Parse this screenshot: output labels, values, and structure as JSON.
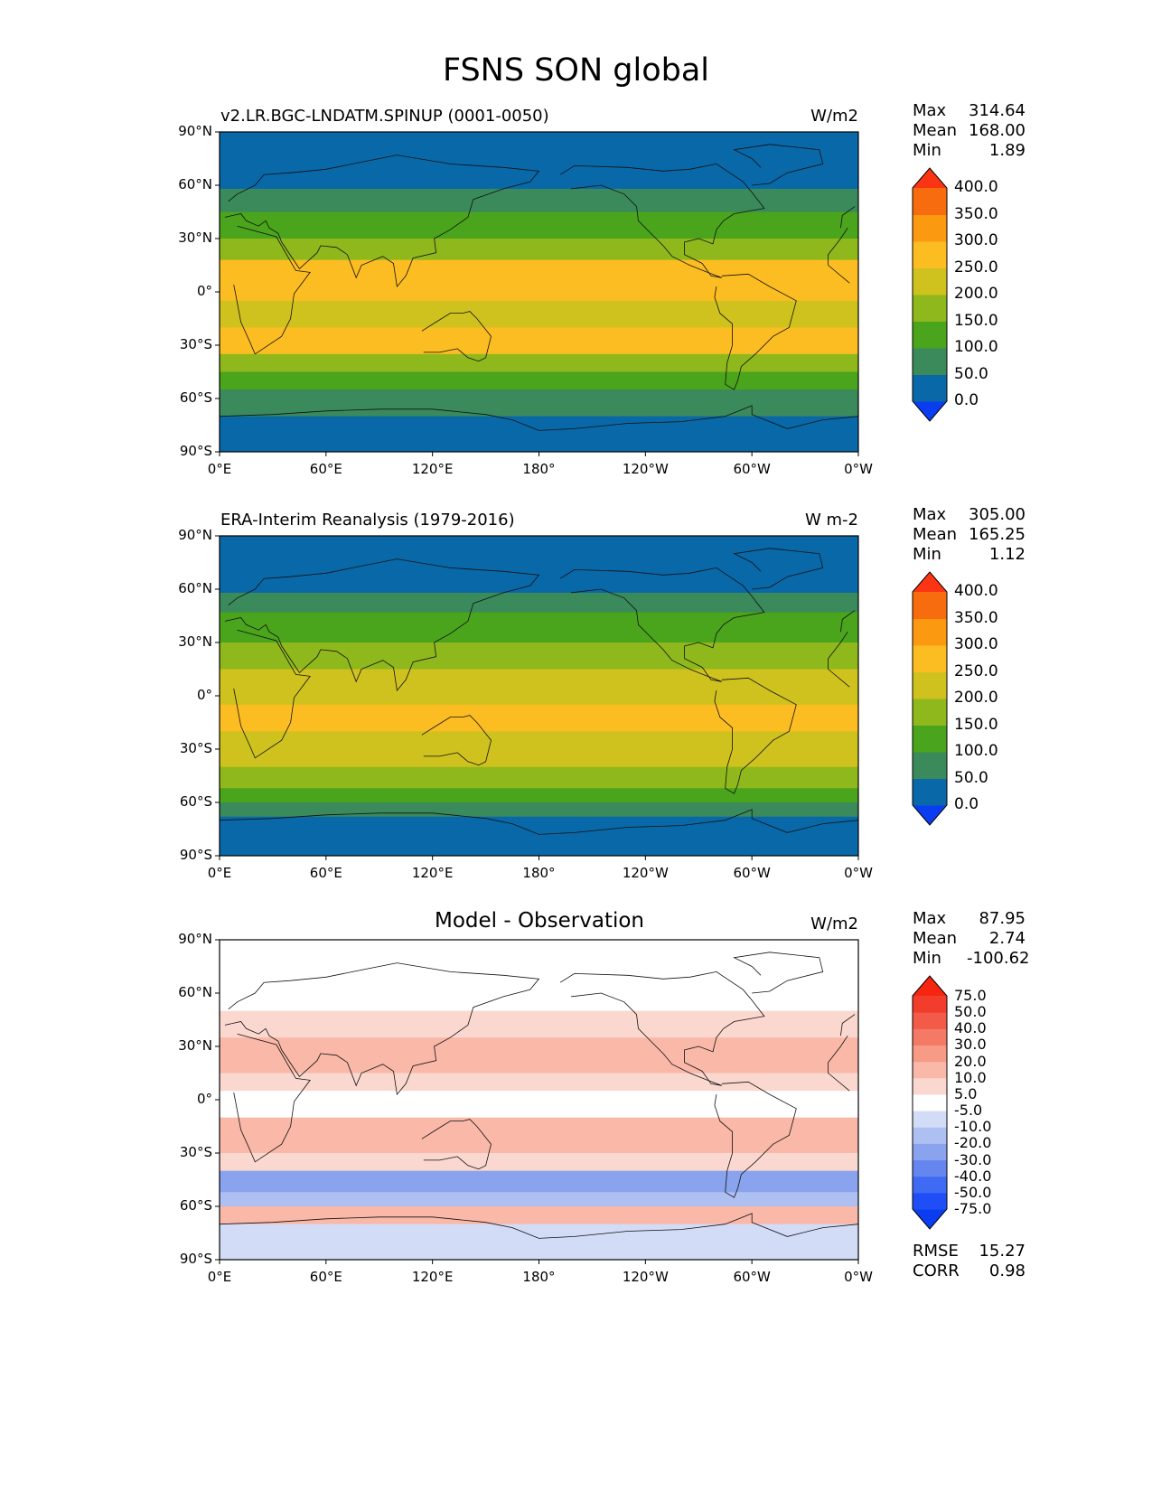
{
  "title": "FSNS SON global",
  "lon_ticks": [
    "0°E",
    "60°E",
    "120°E",
    "180°",
    "120°W",
    "60°W",
    "0°W"
  ],
  "lat_ticks": [
    "90°N",
    "60°N",
    "30°N",
    "0°",
    "30°S",
    "60°S",
    "90°S"
  ],
  "panels": [
    {
      "id": "test",
      "title": "v2.LR.BGC-LNDATM.SPINUP (0001-0050)",
      "units": "W/m2",
      "stats": [
        {
          "label": "Max",
          "value": "314.64"
        },
        {
          "label": "Mean",
          "value": "168.00"
        },
        {
          "label": "Min",
          "value": "1.89"
        }
      ],
      "colorbar": {
        "levels": [
          "0.0",
          "50.0",
          "100.0",
          "150.0",
          "200.0",
          "250.0",
          "300.0",
          "350.0",
          "400.0"
        ],
        "colors": [
          "#0a3df0",
          "#0868a8",
          "#3a8a5c",
          "#4aa41c",
          "#8fb81c",
          "#cfc21f",
          "#fcbd22",
          "#fb9910",
          "#f86c10",
          "#fb3414"
        ]
      }
    },
    {
      "id": "reference",
      "title": "ERA-Interim Reanalysis (1979-2016)",
      "units": "W m-2",
      "stats": [
        {
          "label": "Max",
          "value": "305.00"
        },
        {
          "label": "Mean",
          "value": "165.25"
        },
        {
          "label": "Min",
          "value": "1.12"
        }
      ],
      "colorbar": {
        "levels": [
          "0.0",
          "50.0",
          "100.0",
          "150.0",
          "200.0",
          "250.0",
          "300.0",
          "350.0",
          "400.0"
        ],
        "colors": [
          "#0a3df0",
          "#0868a8",
          "#3a8a5c",
          "#4aa41c",
          "#8fb81c",
          "#cfc21f",
          "#fcbd22",
          "#fb9910",
          "#f86c10",
          "#fb3414"
        ]
      }
    },
    {
      "id": "diff",
      "title": "Model - Observation",
      "units": "W/m2",
      "stats": [
        {
          "label": "Max",
          "value": "87.95"
        },
        {
          "label": "Mean",
          "value": "2.74"
        },
        {
          "label": "Min",
          "value": "-100.62"
        }
      ],
      "colorbar": {
        "levels": [
          "-75.0",
          "-50.0",
          "-40.0",
          "-30.0",
          "-20.0",
          "-10.0",
          "-5.0",
          "5.0",
          "10.0",
          "20.0",
          "30.0",
          "40.0",
          "50.0",
          "75.0"
        ],
        "colors": [
          "#0a3df0",
          "#1f4ef6",
          "#3f6af4",
          "#6586ee",
          "#8aa3ee",
          "#aebff2",
          "#d3dcf7",
          "#ffffff",
          "#fbd8cf",
          "#f9b8a8",
          "#f79a86",
          "#f57a66",
          "#f35a48",
          "#f23c2c",
          "#f52510"
        ]
      },
      "rmse": {
        "label": "RMSE",
        "value": "15.27"
      },
      "corr": {
        "label": "CORR",
        "value": "0.98"
      }
    }
  ]
}
